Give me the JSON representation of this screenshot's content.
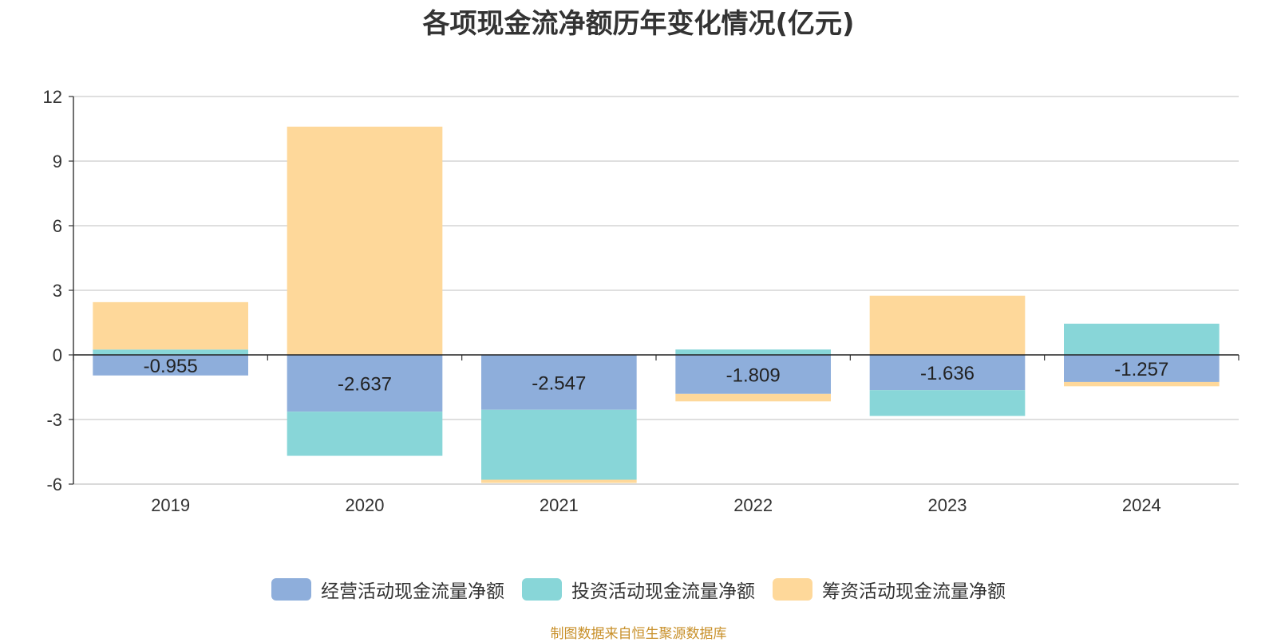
{
  "chart_data": {
    "type": "bar",
    "stacked": true,
    "title": "各项现金流净额历年变化情况(亿元)",
    "categories": [
      "2019",
      "2020",
      "2021",
      "2022",
      "2023",
      "2024"
    ],
    "ylim": [
      -6,
      12
    ],
    "yticks": [
      -6,
      -3,
      0,
      3,
      6,
      9,
      12
    ],
    "series": [
      {
        "name": "经营活动现金流量净额",
        "color": "#8eaedb",
        "labeled": true,
        "values": [
          -0.955,
          -2.637,
          -2.547,
          -1.809,
          -1.636,
          -1.257
        ]
      },
      {
        "name": "投资活动现金流量净额",
        "color": "#88d6d8",
        "labeled": false,
        "values": [
          0.25,
          -2.05,
          -3.25,
          0.25,
          -1.2,
          1.45
        ]
      },
      {
        "name": "筹资活动现金流量净额",
        "color": "#fed89a",
        "labeled": false,
        "values": [
          2.2,
          10.6,
          -0.15,
          -0.35,
          2.75,
          -0.2
        ]
      }
    ]
  },
  "source_note": "制图数据来自恒生聚源数据库"
}
